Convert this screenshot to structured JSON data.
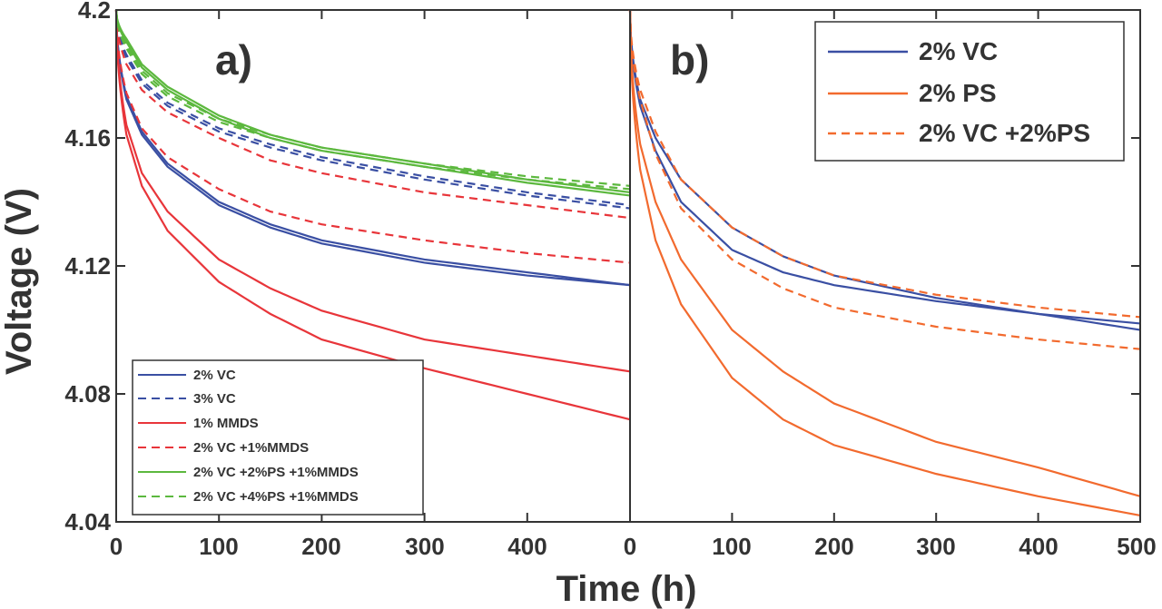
{
  "colors": {
    "blue": "#3a4fa3",
    "red": "#e8353a",
    "orange": "#f26a2e",
    "green": "#5cb83e",
    "axis": "#333333"
  },
  "y_axis": {
    "label": "Voltage (V)",
    "ticks": [
      "4.04",
      "4.08",
      "4.12",
      "4.16",
      "4.2"
    ]
  },
  "x_axis": {
    "label": "Time (h)"
  },
  "chart_data": [
    {
      "type": "line",
      "panel_label": "a)",
      "xlabel": "Time (h)",
      "ylabel": "Voltage (V)",
      "xlim": [
        0,
        500
      ],
      "ylim": [
        4.04,
        4.2
      ],
      "x_ticks": [
        "0",
        "100",
        "200",
        "300",
        "400"
      ],
      "legend": [
        {
          "label": "2% VC",
          "color": "blue",
          "dash": false
        },
        {
          "label": "3% VC",
          "color": "blue",
          "dash": true
        },
        {
          "label": "1% MMDS",
          "color": "red",
          "dash": false
        },
        {
          "label": "2% VC +1%MMDS",
          "color": "red",
          "dash": true
        },
        {
          "label": "2% VC +2%PS +1%MMDS",
          "color": "green",
          "dash": false
        },
        {
          "label": "2% VC +4%PS +1%MMDS",
          "color": "green",
          "dash": true
        }
      ],
      "series": [
        {
          "name": "2% VC",
          "color": "blue",
          "dash": false,
          "x": [
            0,
            10,
            25,
            50,
            100,
            150,
            200,
            300,
            400,
            500
          ],
          "values": [
            4.2,
            4.173,
            4.162,
            4.152,
            4.14,
            4.133,
            4.128,
            4.122,
            4.118,
            4.114
          ]
        },
        {
          "name": "2% VC",
          "color": "blue",
          "dash": false,
          "x": [
            0,
            10,
            25,
            50,
            100,
            150,
            200,
            300,
            400,
            500
          ],
          "values": [
            4.2,
            4.172,
            4.161,
            4.151,
            4.139,
            4.132,
            4.127,
            4.121,
            4.117,
            4.114
          ]
        },
        {
          "name": "3% VC",
          "color": "blue",
          "dash": true,
          "x": [
            0,
            10,
            25,
            50,
            100,
            150,
            200,
            300,
            400,
            500
          ],
          "values": [
            4.2,
            4.186,
            4.178,
            4.171,
            4.163,
            4.158,
            4.154,
            4.148,
            4.143,
            4.139
          ]
        },
        {
          "name": "3% VC",
          "color": "blue",
          "dash": true,
          "x": [
            0,
            10,
            25,
            50,
            100,
            150,
            200,
            300,
            400,
            500
          ],
          "values": [
            4.2,
            4.185,
            4.177,
            4.17,
            4.162,
            4.157,
            4.153,
            4.147,
            4.142,
            4.138
          ]
        },
        {
          "name": "1% MMDS",
          "color": "red",
          "dash": false,
          "x": [
            0,
            10,
            25,
            50,
            100,
            150,
            200,
            300,
            400,
            500
          ],
          "values": [
            4.2,
            4.164,
            4.149,
            4.137,
            4.122,
            4.113,
            4.106,
            4.097,
            4.092,
            4.087
          ]
        },
        {
          "name": "1% MMDS",
          "color": "red",
          "dash": false,
          "x": [
            0,
            10,
            25,
            50,
            100,
            150,
            200,
            300,
            400,
            500
          ],
          "values": [
            4.2,
            4.161,
            4.145,
            4.131,
            4.115,
            4.105,
            4.097,
            4.088,
            4.08,
            4.072
          ]
        },
        {
          "name": "2% VC +1%MMDS",
          "color": "red",
          "dash": true,
          "x": [
            0,
            10,
            25,
            50,
            100,
            150,
            200,
            300,
            400,
            500
          ],
          "values": [
            4.2,
            4.174,
            4.163,
            4.154,
            4.144,
            4.137,
            4.133,
            4.128,
            4.124,
            4.121
          ]
        },
        {
          "name": "2% VC +1%MMDS",
          "color": "red",
          "dash": true,
          "x": [
            0,
            10,
            25,
            50,
            100,
            150,
            200,
            300,
            400,
            500
          ],
          "values": [
            4.2,
            4.183,
            4.175,
            4.168,
            4.16,
            4.153,
            4.149,
            4.143,
            4.139,
            4.135
          ]
        },
        {
          "name": "2% VC +2%PS +1%MMDS",
          "color": "green",
          "dash": false,
          "x": [
            0,
            10,
            25,
            50,
            100,
            150,
            200,
            300,
            400,
            500
          ],
          "values": [
            4.2,
            4.19,
            4.182,
            4.175,
            4.166,
            4.16,
            4.156,
            4.151,
            4.146,
            4.142
          ]
        },
        {
          "name": "2% VC +2%PS +1%MMDS",
          "color": "green",
          "dash": false,
          "x": [
            0,
            10,
            25,
            50,
            100,
            150,
            200,
            300,
            400,
            500
          ],
          "values": [
            4.2,
            4.191,
            4.183,
            4.176,
            4.167,
            4.161,
            4.157,
            4.152,
            4.147,
            4.143
          ]
        },
        {
          "name": "2% VC +4%PS +1%MMDS",
          "color": "green",
          "dash": true,
          "x": [
            0,
            10,
            25,
            50,
            100,
            150,
            200,
            300,
            400,
            500
          ],
          "values": [
            4.2,
            4.188,
            4.18,
            4.173,
            4.165,
            4.16,
            4.156,
            4.151,
            4.147,
            4.144
          ]
        },
        {
          "name": "2% VC +4%PS +1%MMDS",
          "color": "green",
          "dash": true,
          "x": [
            0,
            10,
            25,
            50,
            100,
            150,
            200,
            300,
            400,
            500
          ],
          "values": [
            4.2,
            4.189,
            4.181,
            4.174,
            4.166,
            4.161,
            4.157,
            4.152,
            4.148,
            4.145
          ]
        }
      ]
    },
    {
      "type": "line",
      "panel_label": "b)",
      "xlabel": "Time (h)",
      "ylabel": "Voltage (V)",
      "xlim": [
        0,
        500
      ],
      "ylim": [
        4.04,
        4.2
      ],
      "x_ticks": [
        "0",
        "100",
        "200",
        "300",
        "400",
        "500"
      ],
      "legend": [
        {
          "label": "2% VC",
          "color": "blue",
          "dash": false
        },
        {
          "label": "2% PS",
          "color": "orange",
          "dash": false
        },
        {
          "label": "2% VC +2%PS",
          "color": "orange",
          "dash": true
        }
      ],
      "series": [
        {
          "name": "2% VC",
          "color": "blue",
          "dash": false,
          "x": [
            0,
            10,
            25,
            50,
            100,
            150,
            200,
            300,
            400,
            500
          ],
          "values": [
            4.2,
            4.172,
            4.16,
            4.147,
            4.132,
            4.123,
            4.117,
            4.11,
            4.105,
            4.1
          ]
        },
        {
          "name": "2% VC",
          "color": "blue",
          "dash": false,
          "x": [
            0,
            10,
            25,
            50,
            100,
            150,
            200,
            300,
            400,
            500
          ],
          "values": [
            4.2,
            4.17,
            4.156,
            4.14,
            4.125,
            4.118,
            4.114,
            4.109,
            4.105,
            4.102
          ]
        },
        {
          "name": "2% PS",
          "color": "orange",
          "dash": false,
          "x": [
            0,
            10,
            25,
            50,
            100,
            150,
            200,
            300,
            400,
            500
          ],
          "values": [
            4.2,
            4.158,
            4.14,
            4.122,
            4.1,
            4.087,
            4.077,
            4.065,
            4.057,
            4.048
          ]
        },
        {
          "name": "2% PS",
          "color": "orange",
          "dash": false,
          "x": [
            0,
            10,
            25,
            50,
            100,
            150,
            200,
            300,
            400,
            500
          ],
          "values": [
            4.2,
            4.15,
            4.128,
            4.108,
            4.085,
            4.072,
            4.064,
            4.055,
            4.048,
            4.042
          ]
        },
        {
          "name": "2% VC +2%PS",
          "color": "orange",
          "dash": true,
          "x": [
            0,
            10,
            25,
            50,
            100,
            150,
            200,
            300,
            400,
            500
          ],
          "values": [
            4.2,
            4.175,
            4.162,
            4.147,
            4.132,
            4.123,
            4.117,
            4.111,
            4.107,
            4.104
          ]
        },
        {
          "name": "2% VC +2%PS",
          "color": "orange",
          "dash": true,
          "x": [
            0,
            10,
            25,
            50,
            100,
            150,
            200,
            300,
            400,
            500
          ],
          "values": [
            4.2,
            4.172,
            4.155,
            4.138,
            4.122,
            4.113,
            4.107,
            4.101,
            4.097,
            4.094
          ]
        }
      ]
    }
  ]
}
